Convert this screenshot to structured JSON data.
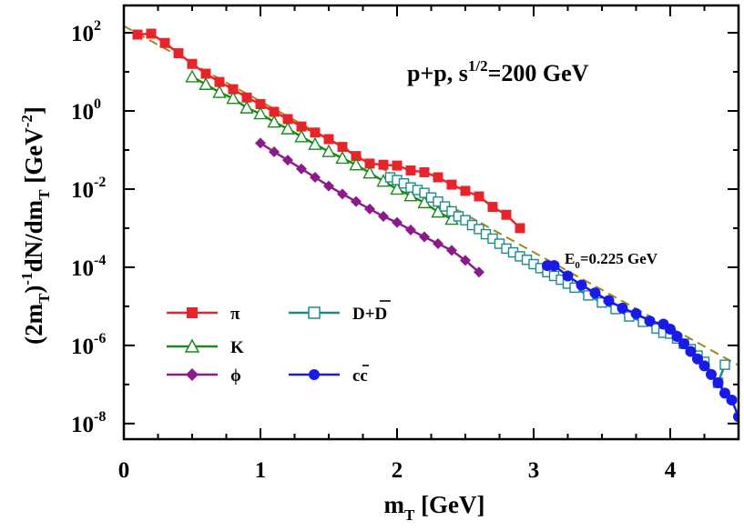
{
  "chart_data": {
    "type": "scatter",
    "title": "",
    "annotation": "p+p,  s",
    "annotation_sup": "1/2",
    "annotation_tail": "=200 GeV",
    "fit_label_pre": "E",
    "fit_label_sub": "0",
    "fit_label_post": "=0.225 GeV",
    "xlabel": "m",
    "xlabel_sub": "T",
    "xlabel_tail": " [GeV]",
    "ylabel": {
      "p1": "(2m",
      "s1": "T",
      "p2": ")",
      "sup1": "-1",
      "p3": "dN/dm",
      "s2": "T",
      "p4": " [GeV",
      "sup2": "-2",
      "p5": "]"
    },
    "xlim": [
      0,
      4.5
    ],
    "ylim_log10": [
      -8.4,
      2.7
    ],
    "x_ticks": [
      {
        "value": 0,
        "label": "0"
      },
      {
        "value": 1,
        "label": "1"
      },
      {
        "value": 2,
        "label": "2"
      },
      {
        "value": 3,
        "label": "3"
      },
      {
        "value": 4,
        "label": "4"
      }
    ],
    "y_ticks": [
      {
        "exp": 2,
        "base": "10",
        "sup": "2"
      },
      {
        "exp": 0,
        "base": "10",
        "sup": "0"
      },
      {
        "exp": -2,
        "base": "10",
        "sup": "-2"
      },
      {
        "exp": -4,
        "base": "10",
        "sup": "-4"
      },
      {
        "exp": -6,
        "base": "10",
        "sup": "-6"
      },
      {
        "exp": -8,
        "base": "10",
        "sup": "-8"
      }
    ],
    "fit_line": {
      "A": 150,
      "E0": 0.225,
      "color": "#9b8a1a",
      "style": "dashed"
    },
    "series": [
      {
        "name": "π",
        "marker": "square-filled",
        "color": "#e8242b",
        "x": [
          0.1,
          0.2,
          0.3,
          0.4,
          0.5,
          0.6,
          0.7,
          0.8,
          0.9,
          1.0,
          1.1,
          1.2,
          1.3,
          1.4,
          1.5,
          1.6,
          1.7,
          1.8,
          1.9,
          2.0,
          2.1,
          2.2,
          2.3,
          2.4,
          2.5,
          2.6,
          2.7,
          2.8,
          2.9
        ],
        "y": [
          90,
          95,
          55,
          30,
          16,
          9,
          5.5,
          3.6,
          2.2,
          1.5,
          0.95,
          0.62,
          0.4,
          0.28,
          0.19,
          0.12,
          0.07,
          0.045,
          0.042,
          0.04,
          0.03,
          0.027,
          0.02,
          0.013,
          0.009,
          0.0065,
          0.0035,
          0.0022,
          0.001
        ]
      },
      {
        "name": "K",
        "marker": "triangle-open",
        "color": "#1a8a1a",
        "x": [
          0.5,
          0.6,
          0.7,
          0.8,
          0.9,
          1.0,
          1.1,
          1.2,
          1.3,
          1.4,
          1.5,
          1.6,
          1.7,
          1.8,
          1.9,
          2.0,
          2.1,
          2.2,
          2.3,
          2.4
        ],
        "y": [
          7.5,
          4.8,
          3.0,
          2.1,
          1.2,
          0.85,
          0.52,
          0.35,
          0.22,
          0.14,
          0.092,
          0.062,
          0.042,
          0.026,
          0.016,
          0.01,
          0.0068,
          0.0045,
          0.0026,
          0.0017
        ]
      },
      {
        "name": "ϕ",
        "marker": "diamond-filled",
        "color": "#8c1a8c",
        "x": [
          1.0,
          1.1,
          1.2,
          1.3,
          1.4,
          1.5,
          1.6,
          1.7,
          1.8,
          1.9,
          2.0,
          2.1,
          2.2,
          2.3,
          2.4,
          2.5,
          2.6
        ],
        "y": [
          0.15,
          0.09,
          0.055,
          0.033,
          0.02,
          0.012,
          0.0075,
          0.0048,
          0.0031,
          0.002,
          0.0014,
          0.0009,
          0.0006,
          0.0004,
          0.00027,
          0.00015,
          7.5e-05
        ]
      },
      {
        "name": "D+D",
        "name_bar": "D",
        "marker": "square-open",
        "color": "#1a8a8a",
        "x": [
          1.95,
          2.0,
          2.05,
          2.1,
          2.15,
          2.2,
          2.25,
          2.3,
          2.35,
          2.4,
          2.45,
          2.5,
          2.55,
          2.6,
          2.65,
          2.7,
          2.75,
          2.8,
          2.85,
          2.9,
          2.95,
          3.0,
          3.05,
          3.1,
          3.15,
          3.2,
          3.25,
          3.3,
          3.4,
          3.5,
          3.6,
          3.7,
          3.8,
          3.9,
          3.95,
          4.0,
          4.05,
          4.1,
          4.15,
          4.2,
          4.25,
          4.35,
          4.4
        ],
        "y": [
          0.02,
          0.017,
          0.014,
          0.011,
          0.0095,
          0.008,
          0.0061,
          0.0048,
          0.0036,
          0.0027,
          0.002,
          0.0016,
          0.0012,
          0.00095,
          0.0007,
          0.00054,
          0.0004,
          0.0003,
          0.00024,
          0.00019,
          0.000155,
          0.00012,
          9.5e-05,
          7.5e-05,
          6e-05,
          4.8e-05,
          3.8e-05,
          3e-05,
          1.9e-05,
          1.25e-05,
          8.5e-06,
          5.5e-06,
          4e-06,
          2.7e-06,
          2.1e-06,
          2e-06,
          1.5e-06,
          1.1e-06,
          8e-07,
          5.5e-07,
          3.8e-07,
          1.1e-07,
          3.2e-07
        ]
      },
      {
        "name": "cc",
        "name_bar": "c",
        "marker": "circle-filled",
        "color": "#1a1ae8",
        "x": [
          3.1,
          3.15,
          3.25,
          3.35,
          3.45,
          3.55,
          3.65,
          3.75,
          3.85,
          3.95,
          4.0,
          4.05,
          4.1,
          4.15,
          4.2,
          4.25,
          4.3,
          4.35,
          4.4,
          4.45,
          4.5
        ],
        "y": [
          0.00011,
          0.00011,
          6e-05,
          3.5e-05,
          2.2e-05,
          1.4e-05,
          9e-06,
          6.5e-06,
          4.2e-06,
          3.5e-06,
          2.6e-06,
          1.7e-06,
          1.1e-06,
          7e-07,
          4.5e-07,
          3e-07,
          1.8e-07,
          1.1e-07,
          6e-08,
          4e-08,
          1.5e-08
        ]
      }
    ]
  }
}
